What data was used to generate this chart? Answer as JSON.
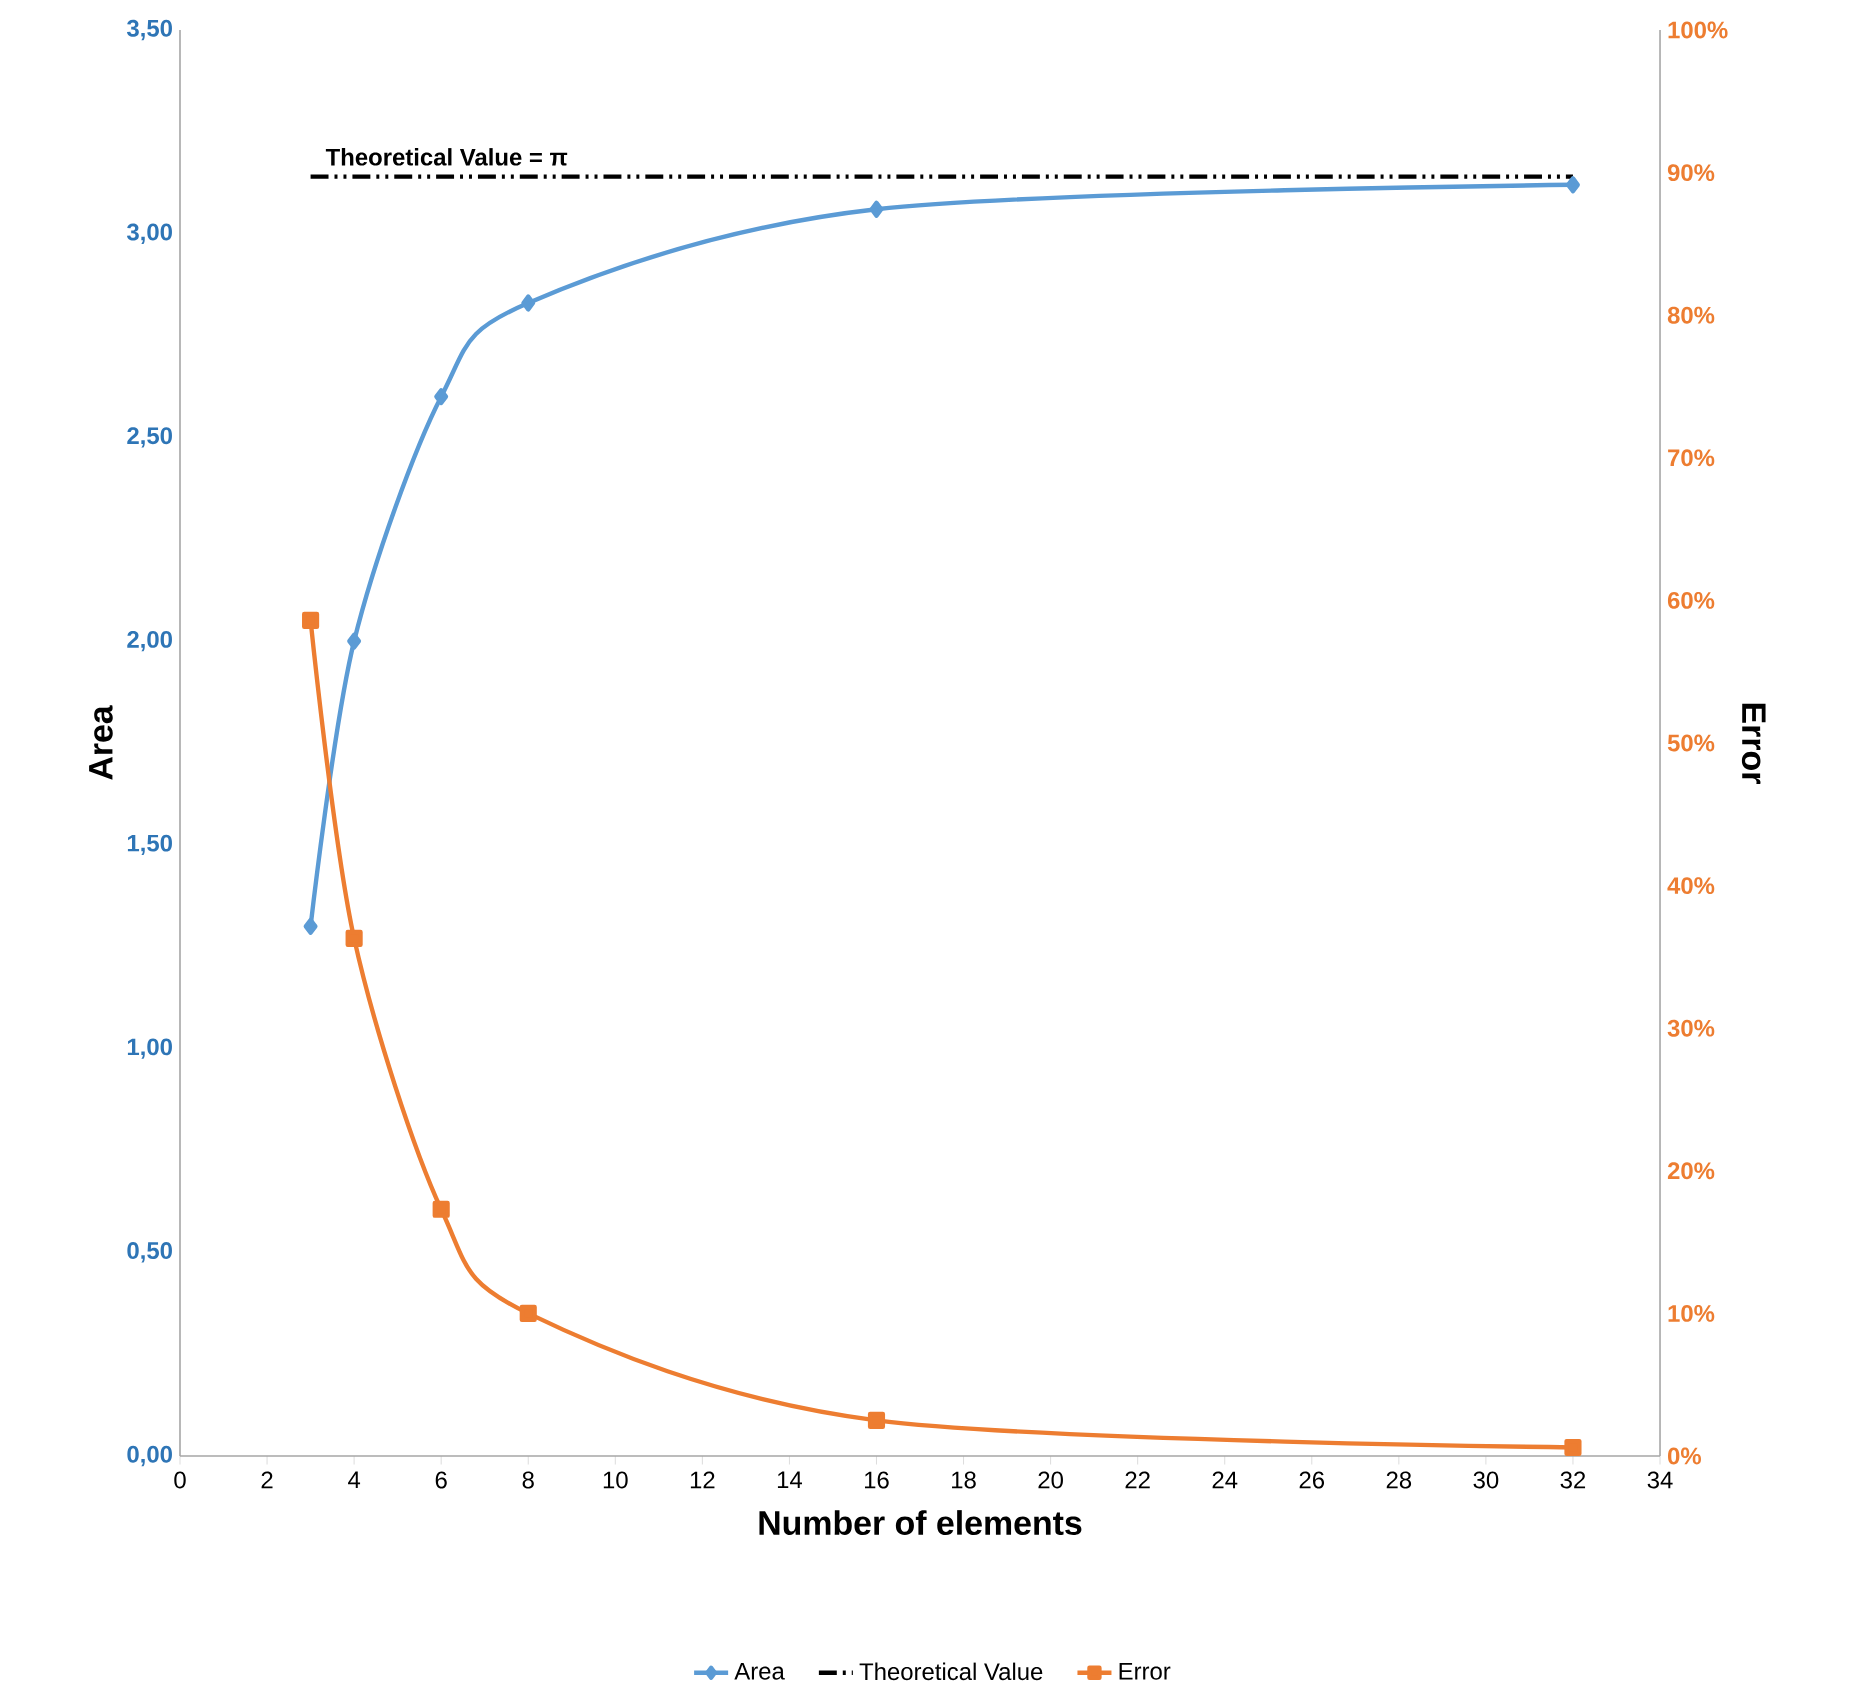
{
  "chart_data": {
    "type": "line",
    "xlabel": "Number of elements",
    "ylabel": "Area",
    "y2label": "Error",
    "xlim": [
      0,
      34
    ],
    "xticks": [
      0,
      2,
      4,
      6,
      8,
      10,
      12,
      14,
      16,
      18,
      20,
      22,
      24,
      26,
      28,
      30,
      32,
      34
    ],
    "ylim": [
      0,
      3.5
    ],
    "yticks": [
      {
        "value": 0,
        "label": "0,00"
      },
      {
        "value": 0.5,
        "label": "0,50"
      },
      {
        "value": 1,
        "label": "1,00"
      },
      {
        "value": 1.5,
        "label": "1,50"
      },
      {
        "value": 2,
        "label": "2,00"
      },
      {
        "value": 2.5,
        "label": "2,50"
      },
      {
        "value": 3,
        "label": "3,00"
      },
      {
        "value": 3.5,
        "label": "3,50"
      }
    ],
    "y2lim": [
      0,
      100
    ],
    "y2ticks": [
      {
        "value": 0,
        "label": "0%"
      },
      {
        "value": 10,
        "label": "10%"
      },
      {
        "value": 20,
        "label": "20%"
      },
      {
        "value": 30,
        "label": "30%"
      },
      {
        "value": 40,
        "label": "40%"
      },
      {
        "value": 50,
        "label": "50%"
      },
      {
        "value": 60,
        "label": "60%"
      },
      {
        "value": 70,
        "label": "70%"
      },
      {
        "value": 80,
        "label": "80%"
      },
      {
        "value": 90,
        "label": "90%"
      },
      {
        "value": 100,
        "label": "100%"
      }
    ],
    "series": [
      {
        "name": "Area",
        "color": "#5b9bd5",
        "marker": "diamond",
        "x": [
          3,
          4,
          6,
          8,
          16,
          32
        ],
        "values": [
          1.3,
          2.0,
          2.6,
          2.83,
          3.06,
          3.12
        ]
      },
      {
        "name": "Theoretical Value",
        "color": "#000000",
        "marker": "none",
        "line_style": "dashed",
        "x": [
          3,
          32
        ],
        "values": [
          3.14,
          3.14
        ]
      },
      {
        "name": "Error",
        "color": "#ed7d31",
        "marker": "square",
        "axis": "y2",
        "x": [
          3,
          4,
          6,
          8,
          16,
          32
        ],
        "values": [
          58.6,
          36.3,
          17.3,
          10.0,
          2.5,
          0.6
        ]
      }
    ],
    "annotations": [
      {
        "text": "Theoretical Value = π",
        "x": 3,
        "y": 3.14
      }
    ],
    "grid": false,
    "legend": "bottom"
  }
}
